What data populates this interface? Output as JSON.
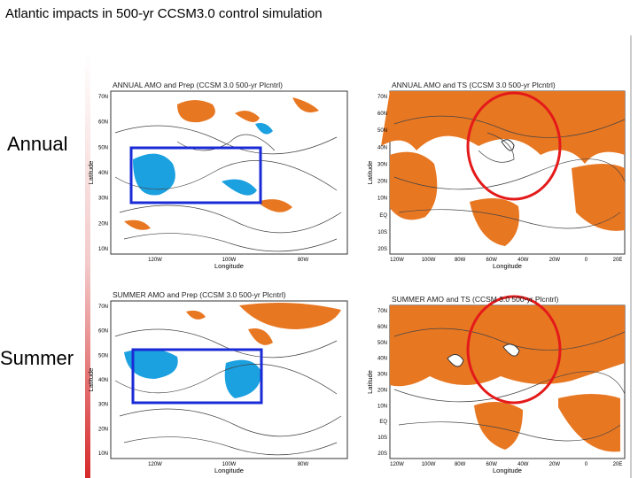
{
  "header": {
    "title": "Atlantic impacts in 500-yr CCSM3.0 control simulation"
  },
  "row_labels": [
    "Annual",
    "Summer"
  ],
  "panels": [
    {
      "title": "ANNUAL AMO and Prep (CCSM 3.0 500-yr Plcntrl)",
      "ylabel": "Latitude",
      "xlabel": "Longitude",
      "yticks": [
        "70N",
        "60N",
        "50N",
        "40N",
        "30N",
        "20N",
        "10N"
      ],
      "xticks": [
        "120W",
        "100W",
        "80W"
      ]
    },
    {
      "title": "ANNUAL AMO and TS (CCSM 3.0 500-yr Plcntrl)",
      "ylabel": "Latitude",
      "xlabel": "Longitude",
      "yticks": [
        "70N",
        "60N",
        "50N",
        "40N",
        "30N",
        "20N",
        "10N",
        "EQ",
        "10S",
        "20S"
      ],
      "xticks": [
        "120W",
        "100W",
        "80W",
        "60W",
        "40W",
        "20W",
        "0",
        "20E"
      ]
    },
    {
      "title": "SUMMER AMO and Prep (CCSM 3.0 500-yr Plcntrl)",
      "ylabel": "Latitude",
      "xlabel": "Longitude",
      "yticks": [
        "70N",
        "60N",
        "50N",
        "40N",
        "30N",
        "20N",
        "10N"
      ],
      "xticks": [
        "120W",
        "100W",
        "80W"
      ]
    },
    {
      "title": "SUMMER AMO and TS (CCSM 3.0 500-yr Plcntrl)",
      "ylabel": "Latitude",
      "xlabel": "Longitude",
      "yticks": [
        "70N",
        "60N",
        "50N",
        "40N",
        "30N",
        "20N",
        "10N",
        "EQ",
        "10S",
        "20S"
      ],
      "xticks": [
        "120W",
        "100W",
        "80W",
        "60W",
        "40W",
        "20W",
        "0",
        "20E"
      ]
    }
  ]
}
